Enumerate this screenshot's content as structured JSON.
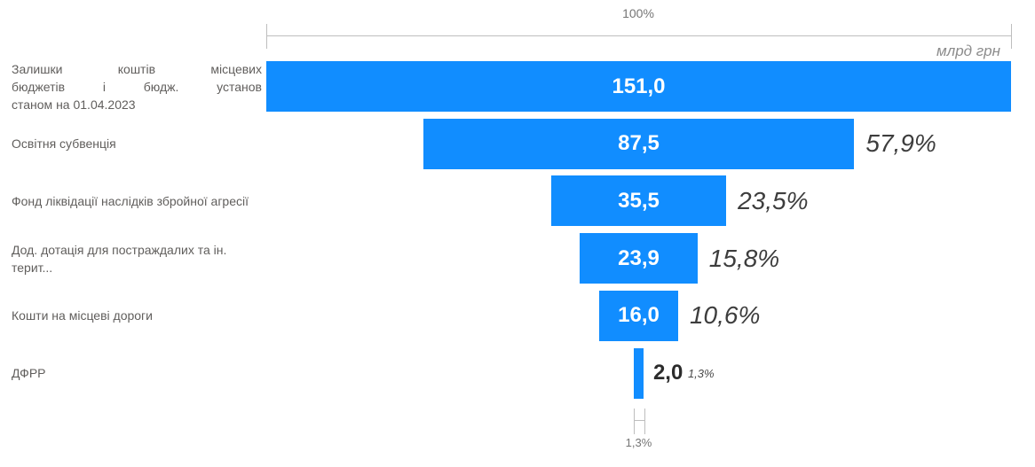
{
  "chart_data": {
    "type": "funnel",
    "orientation": "horizontal-centered",
    "unit_label": "млрд грн",
    "top_axis_label": "100%",
    "bottom_axis_label": "1,3%",
    "value_range": [
      0,
      151.0
    ],
    "colors": {
      "bar": "#118DFF",
      "bar_value_text": "#FFFFFF",
      "category_text": "#605E5C",
      "percent_text": "#3D3D3D",
      "axis_text": "#757575",
      "bracket_line": "#BEBEBE",
      "unit_text": "#8C8C8C"
    },
    "rows": [
      {
        "label": "Залишки коштів місцевих\nбюджетів і бюдж. установ\nстаном на 01.04.2023",
        "value_label": "151,0",
        "value": 151.0,
        "percent": 100,
        "percent_label": ""
      },
      {
        "label": "Освітня субвенція",
        "value_label": "87,5",
        "value": 87.5,
        "percent": 57.9,
        "percent_label": "57,9%"
      },
      {
        "label": "Фонд ліквідації наслідків збройної агресії",
        "value_label": "35,5",
        "value": 35.5,
        "percent": 23.5,
        "percent_label": "23,5%"
      },
      {
        "label": "Дод. дотація для постраждалих та ін. терит...",
        "value_label": "23,9",
        "value": 23.9,
        "percent": 15.8,
        "percent_label": "15,8%"
      },
      {
        "label": "Кошти на місцеві дороги",
        "value_label": "16,0",
        "value": 16.0,
        "percent": 10.6,
        "percent_label": "10,6%"
      },
      {
        "label": "ДФРР",
        "value_label": "2,0",
        "value": 2.0,
        "percent": 1.3,
        "percent_label": "1,3%",
        "value_outside": true
      }
    ]
  }
}
